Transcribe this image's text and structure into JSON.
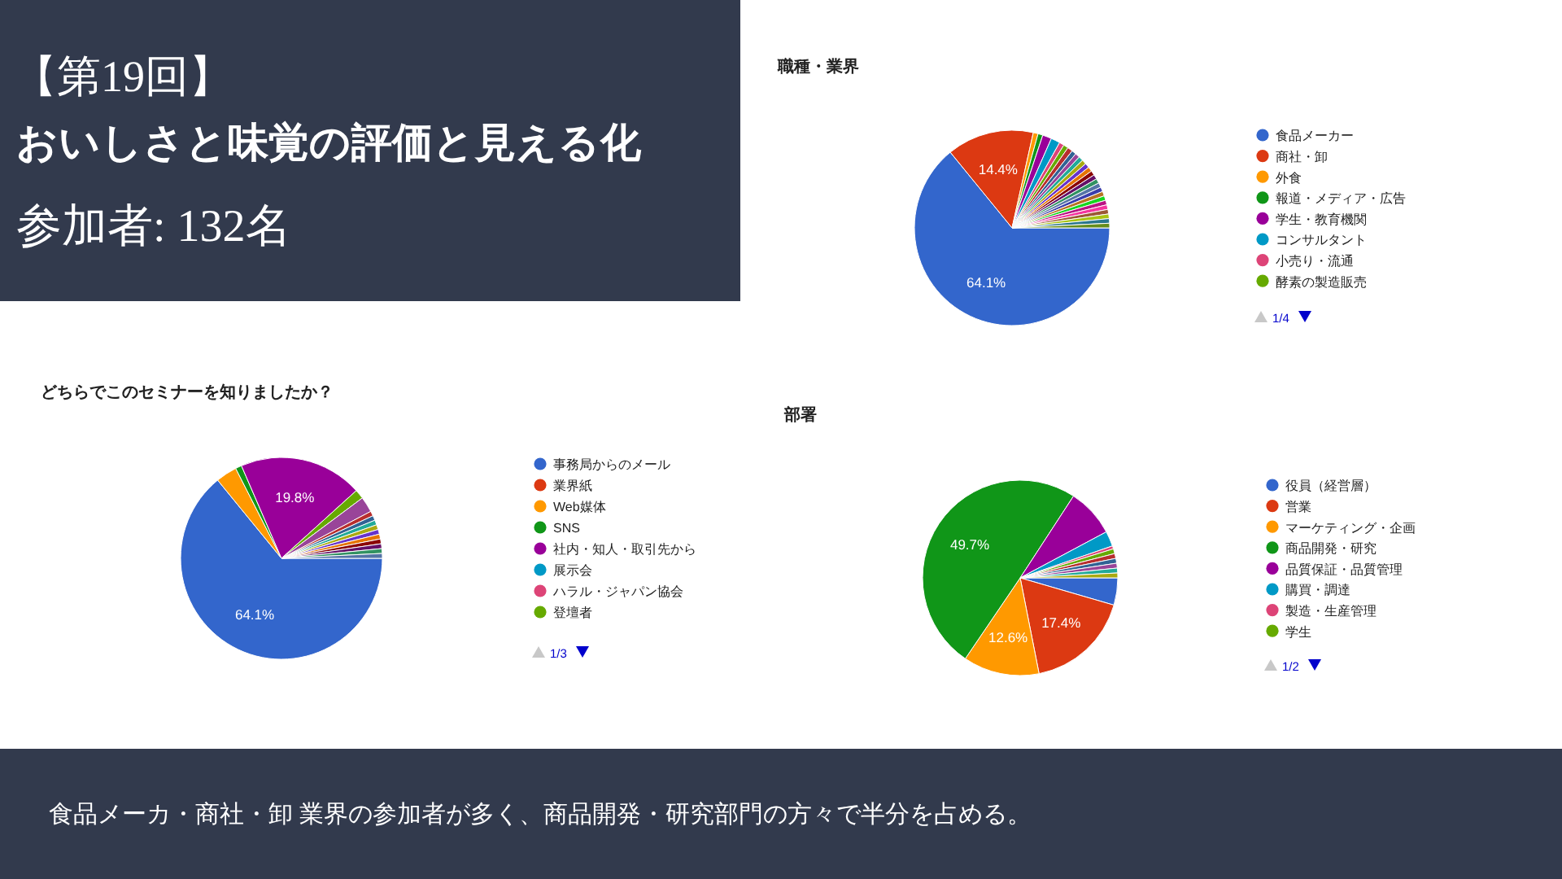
{
  "chart_data": [
    {
      "type": "other",
      "title": "【第19回】",
      "subtitle": "おいしさと味覚の評価と見える化",
      "annotations": [
        "参加者: 132名",
        "食品メーカ・商社・卸 業界の参加者が多く、商品開発・研究部門の方々で半分を占める。"
      ]
    },
    {
      "type": "pie",
      "title": "職種・業界",
      "legend": "right",
      "annotations": [
        "1/4"
      ],
      "categories": [
        "食品メーカー",
        "商社・卸",
        "外食",
        "報道・メディア・広告",
        "学生・教育機関",
        "コンサルタント",
        "小売り・流通",
        "酵素の製造販売",
        null,
        null,
        null,
        null,
        null,
        null,
        null,
        null,
        null,
        null,
        null,
        null,
        null,
        null,
        null,
        null,
        null,
        null,
        null,
        null
      ],
      "values": [
        64.1,
        14.4,
        0.8,
        0.8,
        1.5,
        1.5,
        0.8,
        0.8,
        0.86,
        0.76,
        0.76,
        0.76,
        0.76,
        0.76,
        0.76,
        0.76,
        0.76,
        0.76,
        0.76,
        0.76,
        0.76,
        0.76,
        0.76,
        0.76,
        0.76,
        0.76,
        0.76,
        0.76
      ],
      "value_labels": [
        "64.1%",
        "14.4%",
        null,
        null,
        null,
        null,
        null,
        null,
        null,
        null,
        null,
        null,
        null,
        null,
        null,
        null,
        null,
        null,
        null,
        null,
        null,
        null,
        null,
        null,
        null,
        null,
        null,
        null
      ],
      "colors": [
        "#3366cc",
        "#dc3912",
        "#ff9900",
        "#109618",
        "#990099",
        "#0099c6",
        "#dd4477",
        "#66aa00",
        "#b82e2e",
        "#316395",
        "#994499",
        "#22aa99",
        "#aaaa11",
        "#6633cc",
        "#e67300",
        "#8b0707",
        "#651067",
        "#329262",
        "#5574a6",
        "#3b3eac",
        "#b77322",
        "#16d620",
        "#b91383",
        "#f4359e",
        "#9c5935",
        "#a9c413",
        "#2a778d",
        "#668d1c"
      ]
    },
    {
      "type": "pie",
      "title": "どちらでこのセミナーを知りましたか？",
      "legend": "right",
      "annotations": [
        "1/3"
      ],
      "categories": [
        "事務局からのメール",
        "業界紙",
        "Web媒体",
        "SNS",
        "社内・知人・取引先から",
        "展示会",
        "ハラル・ジャパン協会",
        "登壇者",
        null,
        null,
        null,
        null,
        null,
        null,
        null,
        null,
        null,
        null,
        null
      ],
      "values": [
        64.1,
        0,
        3.4,
        1.0,
        19.8,
        0,
        0,
        1.5,
        2.5,
        0.77,
        0.77,
        0.77,
        0.77,
        0.77,
        0.77,
        0.77,
        0.77,
        0.77,
        0.77
      ],
      "value_labels": [
        "64.1%",
        null,
        null,
        null,
        "19.8%",
        null,
        null,
        null,
        null,
        null,
        null,
        null,
        null,
        null,
        null,
        null,
        null,
        null,
        null
      ],
      "colors": [
        "#3366cc",
        "#dc3912",
        "#ff9900",
        "#109618",
        "#990099",
        "#0099c6",
        "#dd4477",
        "#66aa00",
        "#994499",
        "#b82e2e",
        "#316395",
        "#22aa99",
        "#aaaa11",
        "#6633cc",
        "#e67300",
        "#8b0707",
        "#651067",
        "#329262",
        "#5574a6"
      ]
    },
    {
      "type": "pie",
      "title": "部署",
      "legend": "right",
      "annotations": [
        "1/2"
      ],
      "categories": [
        "役員（経営層）",
        "営業",
        "マーケティング・企画",
        "商品開発・研究",
        "品質保証・品質管理",
        "購買・調達",
        "製造・生産管理",
        "学生",
        null,
        null,
        null,
        null,
        null
      ],
      "values": [
        4.5,
        17.4,
        12.6,
        49.7,
        8.0,
        2.5,
        0.5,
        0.8,
        0.8,
        0.8,
        0.8,
        0.8,
        0.8
      ],
      "value_labels": [
        null,
        "17.4%",
        "12.6%",
        "49.7%",
        null,
        null,
        null,
        null,
        null,
        null,
        null,
        null,
        null
      ],
      "colors": [
        "#3366cc",
        "#dc3912",
        "#ff9900",
        "#109618",
        "#990099",
        "#0099c6",
        "#dd4477",
        "#66aa00",
        "#b82e2e",
        "#316395",
        "#994499",
        "#22aa99",
        "#aaaa11"
      ]
    }
  ]
}
